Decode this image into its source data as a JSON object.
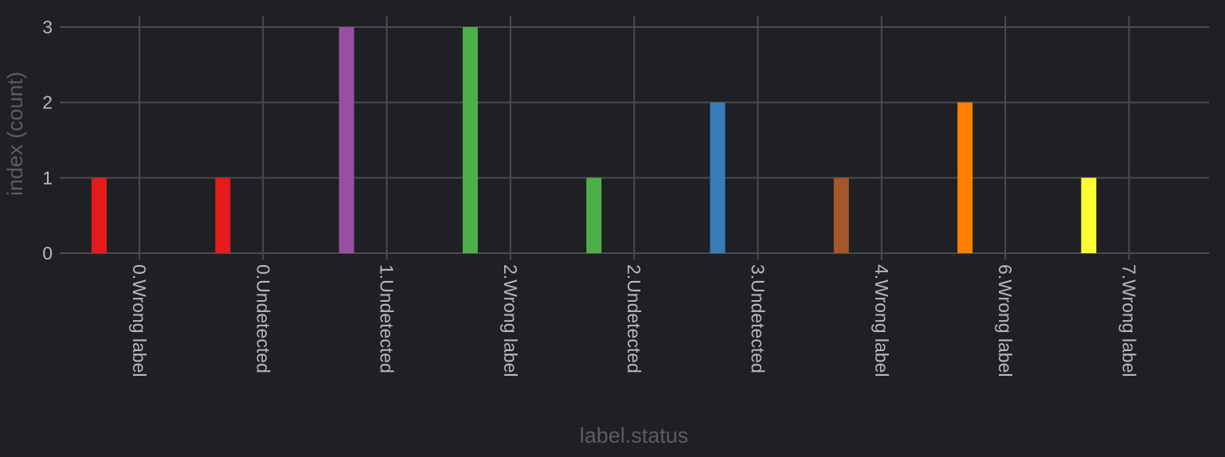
{
  "chart_data": {
    "type": "bar",
    "xlabel": "label.status",
    "ylabel": "index (count)",
    "ylim": [
      0,
      3
    ],
    "yticks": [
      0,
      1,
      2,
      3
    ],
    "grid": true,
    "background": "#1f2023",
    "grid_color": "#4a4b4f",
    "categories": [
      "0.Wrong label",
      "0.Undetected",
      "1.Undetected",
      "2.Wrong label",
      "2.Undetected",
      "3.Undetected",
      "4.Wrong label",
      "6.Wrong label",
      "7.Wrong label"
    ],
    "bars": [
      {
        "category": "0.Wrong label",
        "value": 1,
        "color": "#e41a1c"
      },
      {
        "category": "0.Undetected",
        "value": 1,
        "color": "#e41a1c"
      },
      {
        "category": "1.Undetected",
        "value": 3,
        "color": "#984ea3"
      },
      {
        "category": "2.Wrong label",
        "value": 3,
        "color": "#4daf4a"
      },
      {
        "category": "2.Undetected",
        "value": 1,
        "color": "#4daf4a"
      },
      {
        "category": "3.Undetected",
        "value": 2,
        "color": "#377eb8"
      },
      {
        "category": "4.Wrong label",
        "value": 1,
        "color": "#a65628"
      },
      {
        "category": "6.Wrong label",
        "value": 2,
        "color": "#ff7f00"
      },
      {
        "category": "7.Wrong label",
        "value": 1,
        "color": "#ffff33"
      }
    ]
  }
}
